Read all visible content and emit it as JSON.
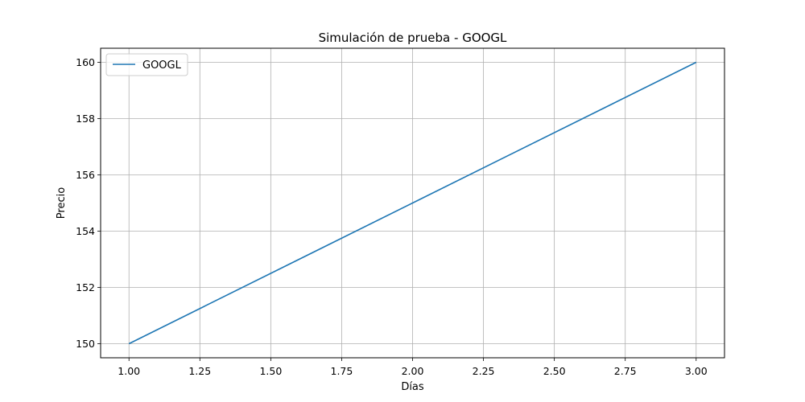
{
  "chart_data": {
    "type": "line",
    "title": "Simulación de prueba - GOOGL",
    "xlabel": "Días",
    "ylabel": "Precio",
    "x": [
      1.0,
      2.0,
      3.0
    ],
    "series": [
      {
        "name": "GOOGL",
        "values": [
          150,
          155,
          160
        ],
        "color": "#1f77b4"
      }
    ],
    "xlim": [
      0.9,
      3.1
    ],
    "ylim": [
      149.5,
      160.5
    ],
    "xticks": [
      1.0,
      1.25,
      1.5,
      1.75,
      2.0,
      2.25,
      2.5,
      2.75,
      3.0
    ],
    "xtick_labels": [
      "1.00",
      "1.25",
      "1.50",
      "1.75",
      "2.00",
      "2.25",
      "2.50",
      "2.75",
      "3.00"
    ],
    "yticks": [
      150,
      152,
      154,
      156,
      158,
      160
    ],
    "ytick_labels": [
      "150",
      "152",
      "154",
      "156",
      "158",
      "160"
    ],
    "grid": true,
    "grid_color": "#b0b0b0",
    "legend_position": "upper-left"
  }
}
